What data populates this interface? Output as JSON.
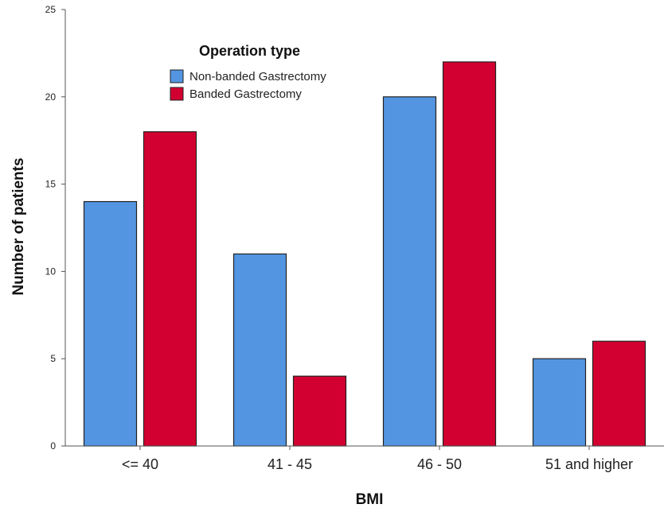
{
  "chart_data": {
    "type": "bar",
    "categories": [
      "<= 40",
      "41 - 45",
      "46 - 50",
      "51 and higher"
    ],
    "series": [
      {
        "name": "Non-banded Gastrectomy",
        "values": [
          14,
          11,
          20,
          5
        ],
        "color": "#5395e0"
      },
      {
        "name": "Banded Gastrectomy",
        "values": [
          18,
          4,
          22,
          6
        ],
        "color": "#d20030"
      }
    ],
    "xlabel": "BMI",
    "ylabel": "Number of patients",
    "ylim": [
      0,
      25
    ],
    "yticks": [
      0,
      5,
      10,
      15,
      20,
      25
    ],
    "legend": {
      "title": "Operation type",
      "position": "top-left"
    },
    "grid": false
  }
}
